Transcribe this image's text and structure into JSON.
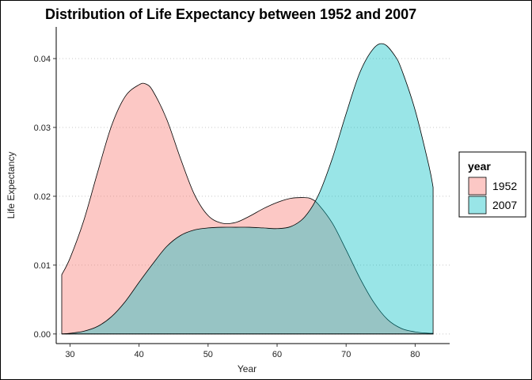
{
  "chart_data": {
    "type": "area",
    "title": "Distribution of Life Expectancy between 1952 and 2007",
    "xlabel": "Year",
    "ylabel": "Life Expectancy",
    "xlim": [
      28,
      85
    ],
    "ylim": [
      -0.0014,
      0.0446
    ],
    "xticks": [
      30,
      40,
      50,
      60,
      70,
      80
    ],
    "yticks": [
      0.0,
      0.01,
      0.02,
      0.03,
      0.04
    ],
    "xtick_labels": [
      "30",
      "40",
      "50",
      "60",
      "70",
      "80"
    ],
    "ytick_labels": [
      "0.00",
      "0.01",
      "0.02",
      "0.03",
      "0.04"
    ],
    "grid": "horizontal-major-dotted",
    "legend": {
      "title": "year",
      "placement": "right"
    },
    "series": [
      {
        "name": "1952",
        "color": "#F8766D",
        "x": [
          28.8,
          30,
          32,
          34,
          36,
          38,
          40,
          41,
          42,
          44,
          46,
          48,
          50,
          52,
          54,
          56,
          58,
          60,
          62,
          64,
          65,
          66,
          68,
          70,
          72,
          74,
          76,
          78,
          80,
          82,
          82.6
        ],
        "y": [
          0.0086,
          0.011,
          0.0165,
          0.0235,
          0.0302,
          0.0345,
          0.0362,
          0.0363,
          0.0353,
          0.0312,
          0.0255,
          0.0203,
          0.0172,
          0.0161,
          0.0162,
          0.0171,
          0.0182,
          0.0191,
          0.0197,
          0.0198,
          0.0196,
          0.0188,
          0.0161,
          0.0122,
          0.0081,
          0.0046,
          0.0021,
          0.0008,
          0.0003,
          0.0001,
          0.0001
        ]
      },
      {
        "name": "2007",
        "color": "#00BFC4",
        "x": [
          28.8,
          30,
          32,
          34,
          36,
          38,
          40,
          42,
          44,
          46,
          48,
          50,
          52,
          54,
          56,
          58,
          60,
          62,
          64,
          66,
          68,
          70,
          72,
          74,
          75.5,
          77,
          78,
          80,
          82,
          82.6
        ],
        "y": [
          0.0,
          0.0001,
          0.0004,
          0.0011,
          0.0025,
          0.0047,
          0.0075,
          0.0102,
          0.0127,
          0.0143,
          0.0151,
          0.0154,
          0.0155,
          0.0155,
          0.0155,
          0.0154,
          0.0153,
          0.0156,
          0.017,
          0.0202,
          0.0255,
          0.032,
          0.038,
          0.0415,
          0.0421,
          0.0405,
          0.0385,
          0.0325,
          0.0244,
          0.0213
        ]
      }
    ]
  }
}
